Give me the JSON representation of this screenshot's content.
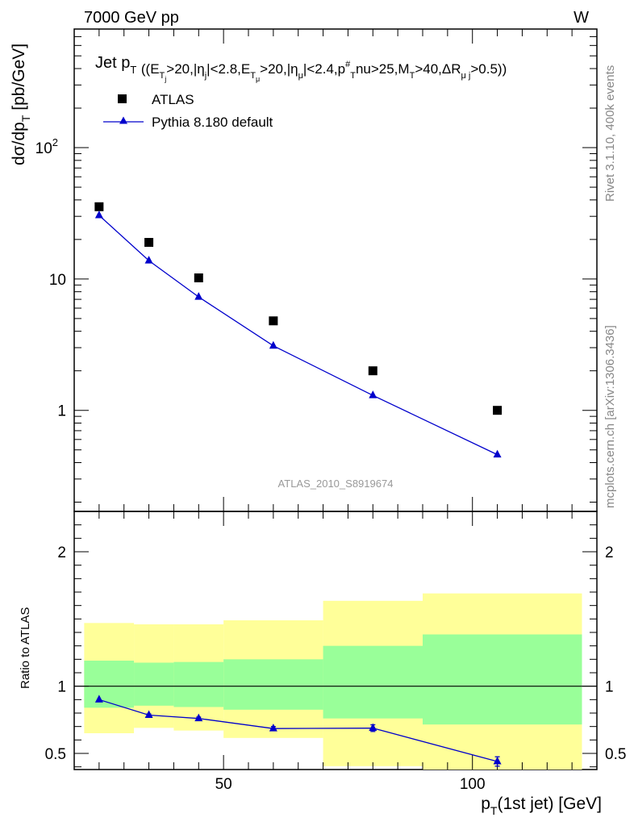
{
  "header": {
    "energy": "7000 GeV pp",
    "process": "W"
  },
  "side_labels": {
    "top": "Rivet 3.1.10,  400k events",
    "bottom": "mcplots.cern.ch [arXiv:1306.3436]"
  },
  "chart_data": [
    {
      "type": "scatter",
      "title": "Jet p_T ((E_Tj>20,|η_j|<2.8,E_Tμ>20,|η_μ|<2.4,p_T^#nu>25,M_T>40,ΔR_μj>0.5))",
      "title_parts": {
        "main": "Jet p",
        "main_sub": "T",
        "cuts": [
          [
            "((E",
            ""
          ],
          [
            "T",
            "sub"
          ],
          [
            "j",
            "subsub"
          ],
          [
            ">20,|η",
            ""
          ],
          [
            "j",
            "sub"
          ],
          [
            "|<2.8,E",
            ""
          ],
          [
            "T",
            "sub"
          ],
          [
            "μ",
            "subsub"
          ],
          [
            ">20,|η",
            ""
          ],
          [
            "μ",
            "sub"
          ],
          [
            "|<2.4,p",
            ""
          ],
          [
            "#",
            "sup"
          ],
          [
            "T",
            "sub"
          ],
          [
            "nu>25,M",
            ""
          ],
          [
            "T",
            "sub"
          ],
          [
            ">40,ΔR",
            ""
          ],
          [
            "μ j",
            "sub"
          ],
          [
            ">0.5))",
            ""
          ]
        ]
      },
      "ylabel": "dσ/dp_T [pb/GeV]",
      "ylabel_parts": {
        "a": "dσ/dp",
        "sub": "T",
        "b": "[pb/GeV]"
      },
      "yscale": "log",
      "ylim": [
        0.17,
        800
      ],
      "yticks": [
        {
          "value": 1,
          "label": "1"
        },
        {
          "value": 10,
          "label": "10"
        },
        {
          "value": 100,
          "label": "10",
          "sup": "2"
        }
      ],
      "xlim": [
        20,
        125
      ],
      "watermark": "ATLAS_2010_S8919674",
      "legend_position": "top-left",
      "series": [
        {
          "name": "ATLAS",
          "marker": "square",
          "color": "#000000",
          "x": [
            25,
            35,
            45,
            60,
            80,
            105
          ],
          "y": [
            35.5,
            19,
            10.2,
            4.8,
            2.0,
            1.0
          ]
        },
        {
          "name": "Pythia 8.180 default",
          "marker": "triangle",
          "color": "#0000cc",
          "x": [
            25,
            35,
            45,
            60,
            80,
            105
          ],
          "y": [
            30.5,
            13.8,
            7.3,
            3.1,
            1.3,
            0.46
          ]
        }
      ]
    },
    {
      "type": "line",
      "ylabel": "Ratio to ATLAS",
      "xlabel": "p_T(1st jet) [GeV]",
      "xlabel_parts": {
        "a": "p",
        "sub": "T",
        "b": "(1st jet) [GeV]"
      },
      "ylim": [
        0.38,
        2.3
      ],
      "xlim": [
        20,
        125
      ],
      "yticks": [
        0.5,
        1,
        2
      ],
      "ytick_labels": [
        "0.5",
        "1",
        "2"
      ],
      "xticks": [
        50,
        100
      ],
      "xtick_labels": [
        "50",
        "100"
      ],
      "reference_line": 1,
      "bands": [
        {
          "xlo": 22,
          "xhi": 32,
          "outer": [
            0.65,
            1.47
          ],
          "inner": [
            0.84,
            1.19
          ]
        },
        {
          "xlo": 32,
          "xhi": 40,
          "outer": [
            0.69,
            1.46
          ],
          "inner": [
            0.855,
            1.175
          ]
        },
        {
          "xlo": 40,
          "xhi": 50,
          "outer": [
            0.67,
            1.46
          ],
          "inner": [
            0.845,
            1.18
          ]
        },
        {
          "xlo": 50,
          "xhi": 70,
          "outer": [
            0.615,
            1.49
          ],
          "inner": [
            0.825,
            1.2
          ]
        },
        {
          "xlo": 70,
          "xhi": 90,
          "outer": [
            0.405,
            1.635
          ],
          "inner": [
            0.76,
            1.3
          ]
        },
        {
          "xlo": 90,
          "xhi": 122,
          "outer": [
            0.36,
            1.69
          ],
          "inner": [
            0.715,
            1.385
          ]
        }
      ],
      "band_colors": {
        "outer": "#ffff99",
        "inner": "#99ff99"
      },
      "series": [
        {
          "name": "Pythia 8.180 default",
          "color": "#0000cc",
          "x": [
            25,
            35,
            45,
            60,
            80,
            105
          ],
          "y": [
            0.9,
            0.785,
            0.76,
            0.685,
            0.688,
            0.44
          ],
          "yerr": [
            0.005,
            0.008,
            0.01,
            0.015,
            0.025,
            0.035
          ]
        }
      ]
    }
  ]
}
